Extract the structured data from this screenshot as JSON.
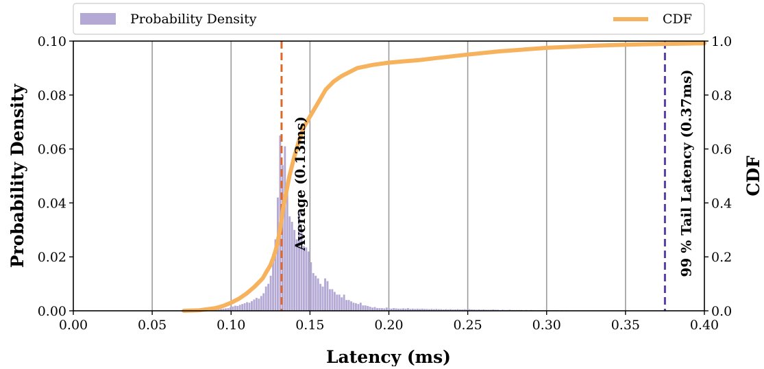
{
  "chart_data": {
    "type": "histogram+line",
    "xlabel": "Latency (ms)",
    "ylabel": "Probability Density",
    "y2label": "CDF",
    "xlim": [
      0.0,
      0.4
    ],
    "ylim": [
      0.0,
      0.1
    ],
    "y2lim": [
      0.0,
      1.0
    ],
    "grid": "vertical",
    "legend_placement": "top",
    "x_ticks": [
      "0.00",
      "0.05",
      "0.10",
      "0.15",
      "0.20",
      "0.25",
      "0.30",
      "0.35",
      "0.40"
    ],
    "y_ticks": [
      "0.00",
      "0.02",
      "0.04",
      "0.06",
      "0.08",
      "0.10"
    ],
    "y2_ticks": [
      "0.0",
      "0.2",
      "0.4",
      "0.6",
      "0.8",
      "1.0"
    ],
    "legend": [
      {
        "label": "Probability Density",
        "kind": "patch",
        "color": "#b3a9d4"
      },
      {
        "label": "CDF",
        "kind": "line",
        "color": "#f6b25d"
      }
    ],
    "series": [
      {
        "name": "Probability Density",
        "kind": "histogram",
        "color": "#b3a9d4",
        "bin_width": 0.0015,
        "bins": [
          [
            0.0885,
            0.0004
          ],
          [
            0.09,
            0.0005
          ],
          [
            0.0915,
            0.0006
          ],
          [
            0.093,
            0.0007
          ],
          [
            0.0945,
            0.0008
          ],
          [
            0.096,
            0.0009
          ],
          [
            0.0975,
            0.001
          ],
          [
            0.099,
            0.0013
          ],
          [
            0.1005,
            0.0016
          ],
          [
            0.102,
            0.0019
          ],
          [
            0.1035,
            0.0018
          ],
          [
            0.105,
            0.0022
          ],
          [
            0.1065,
            0.0025
          ],
          [
            0.108,
            0.0028
          ],
          [
            0.1095,
            0.0032
          ],
          [
            0.111,
            0.003
          ],
          [
            0.1125,
            0.0036
          ],
          [
            0.114,
            0.0042
          ],
          [
            0.1155,
            0.0048
          ],
          [
            0.117,
            0.0045
          ],
          [
            0.1185,
            0.0055
          ],
          [
            0.12,
            0.0065
          ],
          [
            0.1215,
            0.009
          ],
          [
            0.123,
            0.01
          ],
          [
            0.1245,
            0.013
          ],
          [
            0.126,
            0.021
          ],
          [
            0.1275,
            0.0265
          ],
          [
            0.129,
            0.042
          ],
          [
            0.1305,
            0.065
          ],
          [
            0.132,
            0.054
          ],
          [
            0.1335,
            0.061
          ],
          [
            0.135,
            0.0455
          ],
          [
            0.1365,
            0.035
          ],
          [
            0.138,
            0.033
          ],
          [
            0.1395,
            0.03
          ],
          [
            0.141,
            0.0265
          ],
          [
            0.1425,
            0.037
          ],
          [
            0.144,
            0.03
          ],
          [
            0.1455,
            0.024
          ],
          [
            0.147,
            0.0235
          ],
          [
            0.1485,
            0.022
          ],
          [
            0.15,
            0.018
          ],
          [
            0.1515,
            0.014
          ],
          [
            0.153,
            0.013
          ],
          [
            0.1545,
            0.012
          ],
          [
            0.156,
            0.01
          ],
          [
            0.1575,
            0.009
          ],
          [
            0.159,
            0.012
          ],
          [
            0.1605,
            0.011
          ],
          [
            0.162,
            0.008
          ],
          [
            0.1635,
            0.008
          ],
          [
            0.165,
            0.007
          ],
          [
            0.1665,
            0.006
          ],
          [
            0.168,
            0.006
          ],
          [
            0.1695,
            0.005
          ],
          [
            0.171,
            0.006
          ],
          [
            0.1725,
            0.004
          ],
          [
            0.174,
            0.004
          ],
          [
            0.1755,
            0.0035
          ],
          [
            0.177,
            0.003
          ],
          [
            0.1785,
            0.0028
          ],
          [
            0.18,
            0.0025
          ],
          [
            0.1815,
            0.003
          ],
          [
            0.183,
            0.002
          ],
          [
            0.1845,
            0.002
          ],
          [
            0.186,
            0.0018
          ],
          [
            0.1875,
            0.0015
          ],
          [
            0.189,
            0.0012
          ],
          [
            0.1905,
            0.0014
          ],
          [
            0.192,
            0.001
          ],
          [
            0.1935,
            0.001
          ],
          [
            0.195,
            0.001
          ],
          [
            0.1965,
            0.0009
          ],
          [
            0.198,
            0.0012
          ],
          [
            0.1995,
            0.0009
          ],
          [
            0.201,
            0.0008
          ],
          [
            0.2025,
            0.001
          ],
          [
            0.204,
            0.0009
          ],
          [
            0.2055,
            0.0008
          ],
          [
            0.207,
            0.0008
          ],
          [
            0.2085,
            0.0009
          ],
          [
            0.21,
            0.0008
          ],
          [
            0.2115,
            0.001
          ],
          [
            0.213,
            0.0007
          ],
          [
            0.2145,
            0.0008
          ],
          [
            0.216,
            0.0007
          ],
          [
            0.2175,
            0.0008
          ],
          [
            0.219,
            0.0007
          ],
          [
            0.2205,
            0.0008
          ],
          [
            0.222,
            0.0007
          ],
          [
            0.2235,
            0.0007
          ],
          [
            0.225,
            0.0006
          ],
          [
            0.2265,
            0.0007
          ],
          [
            0.228,
            0.0006
          ],
          [
            0.2295,
            0.0007
          ],
          [
            0.231,
            0.0006
          ],
          [
            0.2325,
            0.0006
          ],
          [
            0.234,
            0.0005
          ],
          [
            0.2355,
            0.0006
          ],
          [
            0.237,
            0.0005
          ],
          [
            0.2385,
            0.0006
          ],
          [
            0.24,
            0.0005
          ],
          [
            0.2415,
            0.0005
          ],
          [
            0.243,
            0.0006
          ],
          [
            0.2445,
            0.0005
          ],
          [
            0.246,
            0.0005
          ],
          [
            0.2475,
            0.0006
          ],
          [
            0.249,
            0.0005
          ],
          [
            0.2505,
            0.0006
          ],
          [
            0.252,
            0.0005
          ],
          [
            0.2535,
            0.0005
          ],
          [
            0.255,
            0.0004
          ],
          [
            0.2565,
            0.0005
          ],
          [
            0.258,
            0.0004
          ],
          [
            0.2595,
            0.0005
          ],
          [
            0.261,
            0.0004
          ],
          [
            0.2625,
            0.0004
          ],
          [
            0.264,
            0.0004
          ],
          [
            0.2655,
            0.0005
          ],
          [
            0.267,
            0.0004
          ],
          [
            0.2685,
            0.0004
          ],
          [
            0.27,
            0.0003
          ],
          [
            0.2715,
            0.0004
          ],
          [
            0.273,
            0.0003
          ],
          [
            0.2745,
            0.0003
          ],
          [
            0.276,
            0.0004
          ],
          [
            0.2775,
            0.0003
          ],
          [
            0.279,
            0.0003
          ],
          [
            0.2805,
            0.0003
          ],
          [
            0.282,
            0.0003
          ],
          [
            0.2835,
            0.0003
          ],
          [
            0.285,
            0.0002
          ],
          [
            0.2865,
            0.0003
          ],
          [
            0.288,
            0.0002
          ],
          [
            0.2895,
            0.0003
          ],
          [
            0.291,
            0.0002
          ],
          [
            0.2925,
            0.0002
          ],
          [
            0.294,
            0.0002
          ],
          [
            0.2955,
            0.0002
          ],
          [
            0.297,
            0.0002
          ],
          [
            0.2985,
            0.0002
          ],
          [
            0.3,
            0.0002
          ],
          [
            0.3015,
            0.0002
          ],
          [
            0.303,
            0.0002
          ],
          [
            0.3045,
            0.0002
          ],
          [
            0.306,
            0.0002
          ],
          [
            0.3075,
            0.0001
          ],
          [
            0.309,
            0.0002
          ],
          [
            0.3105,
            0.0001
          ],
          [
            0.312,
            0.0002
          ],
          [
            0.3135,
            0.0001
          ],
          [
            0.315,
            0.0001
          ],
          [
            0.3165,
            0.0001
          ],
          [
            0.318,
            0.0001
          ],
          [
            0.3195,
            0.0001
          ],
          [
            0.321,
            0.0001
          ],
          [
            0.3225,
            0.0001
          ],
          [
            0.324,
            0.0001
          ],
          [
            0.3255,
            0.0001
          ],
          [
            0.327,
            0.0001
          ],
          [
            0.3285,
            0.0001
          ],
          [
            0.33,
            0.0001
          ],
          [
            0.3315,
            0.0001
          ],
          [
            0.333,
            0.0001
          ],
          [
            0.3345,
            0.0001
          ],
          [
            0.336,
            0.0001
          ],
          [
            0.3375,
            0.0001
          ],
          [
            0.339,
            0.0001
          ],
          [
            0.3405,
            0.0001
          ],
          [
            0.342,
            0.0001
          ],
          [
            0.3435,
            0.0001
          ],
          [
            0.345,
            0.0001
          ],
          [
            0.3465,
            0.0001
          ],
          [
            0.348,
            0.0001
          ],
          [
            0.3495,
            0.0001
          ],
          [
            0.351,
            0.0001
          ],
          [
            0.3525,
            0.0001
          ],
          [
            0.354,
            0.0001
          ],
          [
            0.3555,
            0.0001
          ],
          [
            0.357,
            0.0001
          ],
          [
            0.3585,
            0.0001
          ],
          [
            0.36,
            0.0001
          ],
          [
            0.3615,
            0.0001
          ],
          [
            0.363,
            0.0001
          ],
          [
            0.3645,
            0.0001
          ],
          [
            0.366,
            0.0001
          ],
          [
            0.3675,
            0.0001
          ],
          [
            0.369,
            0.0001
          ]
        ]
      },
      {
        "name": "CDF",
        "kind": "line",
        "color": "#f6b25d",
        "x": [
          0.07,
          0.08,
          0.09,
          0.095,
          0.1,
          0.105,
          0.11,
          0.115,
          0.12,
          0.122,
          0.125,
          0.127,
          0.129,
          0.131,
          0.133,
          0.135,
          0.137,
          0.14,
          0.143,
          0.146,
          0.15,
          0.155,
          0.16,
          0.165,
          0.17,
          0.175,
          0.18,
          0.19,
          0.2,
          0.21,
          0.22,
          0.23,
          0.25,
          0.27,
          0.3,
          0.33,
          0.36,
          0.4
        ],
        "values": [
          0.0,
          0.002,
          0.01,
          0.018,
          0.03,
          0.045,
          0.065,
          0.09,
          0.12,
          0.14,
          0.17,
          0.2,
          0.24,
          0.3,
          0.38,
          0.44,
          0.5,
          0.57,
          0.63,
          0.68,
          0.72,
          0.77,
          0.82,
          0.85,
          0.87,
          0.885,
          0.9,
          0.912,
          0.92,
          0.925,
          0.93,
          0.937,
          0.95,
          0.962,
          0.975,
          0.983,
          0.988,
          0.992
        ]
      }
    ],
    "markers": [
      {
        "name": "average-line",
        "x": 0.132,
        "color": "#e0672a",
        "label": "Average (0.13ms)"
      },
      {
        "name": "p99-line",
        "x": 0.375,
        "color": "#5b3fa8",
        "label": "99 % Tail Latency (0.37ms)"
      }
    ]
  }
}
